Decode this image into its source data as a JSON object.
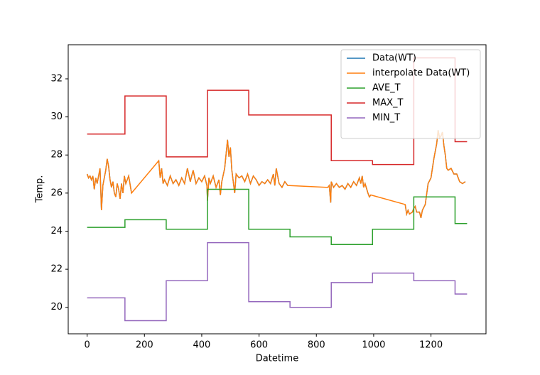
{
  "chart_data": {
    "type": "line",
    "xlabel": "Datetime",
    "ylabel": "Temp.",
    "xlim": [
      -66,
      1392
    ],
    "ylim": [
      18.61,
      33.79
    ],
    "xticks": [
      0,
      200,
      400,
      600,
      800,
      1000,
      1200
    ],
    "yticks": [
      20,
      22,
      24,
      26,
      28,
      30,
      32
    ],
    "legend": "upper right",
    "series": [
      {
        "name": "Data(WT)",
        "color": "#1f77b4",
        "x": [
          0,
          5,
          10,
          15,
          20,
          25,
          30,
          35,
          40,
          45,
          50,
          55,
          60,
          65,
          70,
          75,
          80,
          85,
          90,
          95,
          100,
          105,
          110,
          115,
          120,
          125,
          130,
          135,
          140,
          145,
          155,
          200,
          250,
          255,
          260,
          265,
          270,
          280,
          290,
          300,
          310,
          320,
          330,
          340,
          350,
          360,
          370,
          380,
          390,
          400,
          410,
          418,
          420,
          425,
          430,
          440,
          450,
          460,
          465,
          470,
          480,
          490,
          495,
          500,
          505,
          510,
          515,
          520,
          530,
          540,
          550,
          560,
          570,
          580,
          590,
          600,
          610,
          620,
          630,
          640,
          650,
          655,
          660,
          665,
          670,
          680,
          690,
          700,
          770,
          840,
          845,
          850,
          852,
          860,
          870,
          880,
          890,
          900,
          910,
          920,
          930,
          940,
          950,
          955,
          960,
          965,
          970,
          980,
          985,
          990,
          1050,
          1110,
          1115,
          1120,
          1125,
          1135,
          1140,
          1145,
          1150,
          1160,
          1165,
          1170,
          1180,
          1190,
          1200,
          1210,
          1220,
          1225,
          1230,
          1235,
          1240,
          1245,
          1250,
          1255,
          1260,
          1270,
          1280,
          1290,
          1300,
          1310,
          1320
        ],
        "values": [
          27.0,
          26.8,
          26.9,
          26.7,
          26.9,
          26.2,
          26.8,
          26.5,
          26.9,
          27.3,
          25.1,
          26.4,
          26.8,
          27.2,
          27.8,
          27.4,
          26.7,
          26.3,
          26.6,
          26.0,
          25.8,
          26.5,
          26.2,
          25.7,
          26.5,
          26.0,
          26.9,
          26.5,
          26.7,
          26.9,
          26.0,
          null,
          27.7,
          26.8,
          27.3,
          26.5,
          26.7,
          26.4,
          26.9,
          26.5,
          26.7,
          26.4,
          26.8,
          26.5,
          27.3,
          26.6,
          27.2,
          26.5,
          26.8,
          26.6,
          26.9,
          26.4,
          25.6,
          26.8,
          26.5,
          26.9,
          26.3,
          26.7,
          25.9,
          26.6,
          27.3,
          28.8,
          27.9,
          28.4,
          27.2,
          26.6,
          26.0,
          27.0,
          26.8,
          26.9,
          26.6,
          27.0,
          26.5,
          26.9,
          26.7,
          26.4,
          26.6,
          26.5,
          26.7,
          26.5,
          27.0,
          26.4,
          27.3,
          26.9,
          26.5,
          26.3,
          26.6,
          26.4,
          null,
          26.3,
          26.4,
          25.5,
          26.6,
          26.3,
          26.5,
          26.3,
          26.4,
          26.2,
          26.5,
          26.3,
          26.6,
          26.4,
          26.8,
          26.5,
          26.9,
          26.3,
          26.5,
          26.0,
          25.8,
          25.9,
          null,
          25.4,
          24.9,
          25.1,
          24.9,
          25.0,
          25.2,
          25.3,
          25.0,
          25.0,
          24.7,
          25.1,
          25.4,
          26.5,
          26.8,
          27.8,
          28.6,
          29.3,
          28.9,
          29.0,
          29.2,
          28.5,
          28.0,
          27.3,
          27.2,
          27.3,
          27.0,
          27.0,
          26.6,
          26.5,
          26.6
        ]
      },
      {
        "name": "interpolate Data(WT)",
        "color": "#ff7f0e",
        "x": [
          0,
          5,
          10,
          15,
          20,
          25,
          30,
          35,
          40,
          45,
          50,
          55,
          60,
          65,
          70,
          75,
          80,
          85,
          90,
          95,
          100,
          105,
          110,
          115,
          120,
          125,
          130,
          135,
          140,
          145,
          155,
          250,
          255,
          260,
          265,
          270,
          280,
          290,
          300,
          310,
          320,
          330,
          340,
          350,
          360,
          370,
          380,
          390,
          400,
          410,
          418,
          420,
          425,
          430,
          440,
          450,
          460,
          465,
          470,
          480,
          490,
          495,
          500,
          505,
          510,
          515,
          520,
          530,
          540,
          550,
          560,
          570,
          580,
          590,
          600,
          610,
          620,
          630,
          640,
          650,
          655,
          660,
          665,
          670,
          680,
          690,
          700,
          840,
          845,
          850,
          852,
          860,
          870,
          880,
          890,
          900,
          910,
          920,
          930,
          940,
          950,
          955,
          960,
          965,
          970,
          980,
          985,
          990,
          1110,
          1115,
          1120,
          1125,
          1135,
          1140,
          1145,
          1150,
          1160,
          1165,
          1170,
          1180,
          1190,
          1200,
          1210,
          1220,
          1225,
          1230,
          1235,
          1240,
          1245,
          1250,
          1255,
          1260,
          1270,
          1280,
          1290,
          1300,
          1310,
          1320
        ],
        "values": [
          27.0,
          26.8,
          26.9,
          26.7,
          26.9,
          26.2,
          26.8,
          26.5,
          26.9,
          27.3,
          25.1,
          26.4,
          26.8,
          27.2,
          27.8,
          27.4,
          26.7,
          26.3,
          26.6,
          26.0,
          25.8,
          26.5,
          26.2,
          25.7,
          26.5,
          26.0,
          26.9,
          26.5,
          26.7,
          26.9,
          26.0,
          27.7,
          26.8,
          27.3,
          26.5,
          26.7,
          26.4,
          26.9,
          26.5,
          26.7,
          26.4,
          26.8,
          26.5,
          27.3,
          26.6,
          27.2,
          26.5,
          26.8,
          26.6,
          26.9,
          26.4,
          25.6,
          26.8,
          26.5,
          26.9,
          26.3,
          26.7,
          25.9,
          26.6,
          27.3,
          28.8,
          27.9,
          28.4,
          27.2,
          26.6,
          26.0,
          27.0,
          26.8,
          26.9,
          26.6,
          27.0,
          26.5,
          26.9,
          26.7,
          26.4,
          26.6,
          26.5,
          26.7,
          26.5,
          27.0,
          26.4,
          27.3,
          26.9,
          26.5,
          26.3,
          26.6,
          26.4,
          26.3,
          26.4,
          25.5,
          26.6,
          26.3,
          26.5,
          26.3,
          26.4,
          26.2,
          26.5,
          26.3,
          26.6,
          26.4,
          26.8,
          26.5,
          26.9,
          26.3,
          26.5,
          26.0,
          25.8,
          25.9,
          25.4,
          24.9,
          25.1,
          24.9,
          25.0,
          25.2,
          25.3,
          25.0,
          25.0,
          24.7,
          25.1,
          25.4,
          26.5,
          26.8,
          27.8,
          28.6,
          29.3,
          28.9,
          29.0,
          29.2,
          28.5,
          28.0,
          27.3,
          27.2,
          27.3,
          27.0,
          27.0,
          26.6,
          26.5,
          26.6
        ]
      },
      {
        "name": "AVE_T",
        "color": "#2ca02c",
        "x": [
          0,
          132,
          132,
          276,
          276,
          420,
          420,
          564,
          564,
          708,
          708,
          852,
          852,
          996,
          996,
          1140,
          1140,
          1284,
          1284,
          1326
        ],
        "values": [
          24.2,
          24.2,
          24.6,
          24.6,
          24.1,
          24.1,
          26.2,
          26.2,
          24.1,
          24.1,
          23.7,
          23.7,
          23.3,
          23.3,
          24.1,
          24.1,
          25.8,
          25.8,
          24.4,
          24.4
        ]
      },
      {
        "name": "MAX_T",
        "color": "#d62728",
        "x": [
          0,
          132,
          132,
          276,
          276,
          420,
          420,
          564,
          564,
          708,
          708,
          852,
          852,
          996,
          996,
          1140,
          1140,
          1284,
          1284,
          1326
        ],
        "values": [
          29.1,
          29.1,
          31.1,
          31.1,
          27.9,
          27.9,
          31.4,
          31.4,
          30.1,
          30.1,
          30.1,
          30.1,
          27.7,
          27.7,
          27.5,
          27.5,
          33.1,
          33.1,
          28.7,
          28.7
        ]
      },
      {
        "name": "MIN_T",
        "color": "#9467bd",
        "x": [
          0,
          132,
          132,
          276,
          276,
          420,
          420,
          564,
          564,
          708,
          708,
          852,
          852,
          996,
          996,
          1140,
          1140,
          1284,
          1284,
          1326
        ],
        "values": [
          20.5,
          20.5,
          19.3,
          19.3,
          21.4,
          21.4,
          23.4,
          23.4,
          20.3,
          20.3,
          20.0,
          20.0,
          21.3,
          21.3,
          21.8,
          21.8,
          21.4,
          21.4,
          20.7,
          20.7
        ]
      }
    ]
  }
}
